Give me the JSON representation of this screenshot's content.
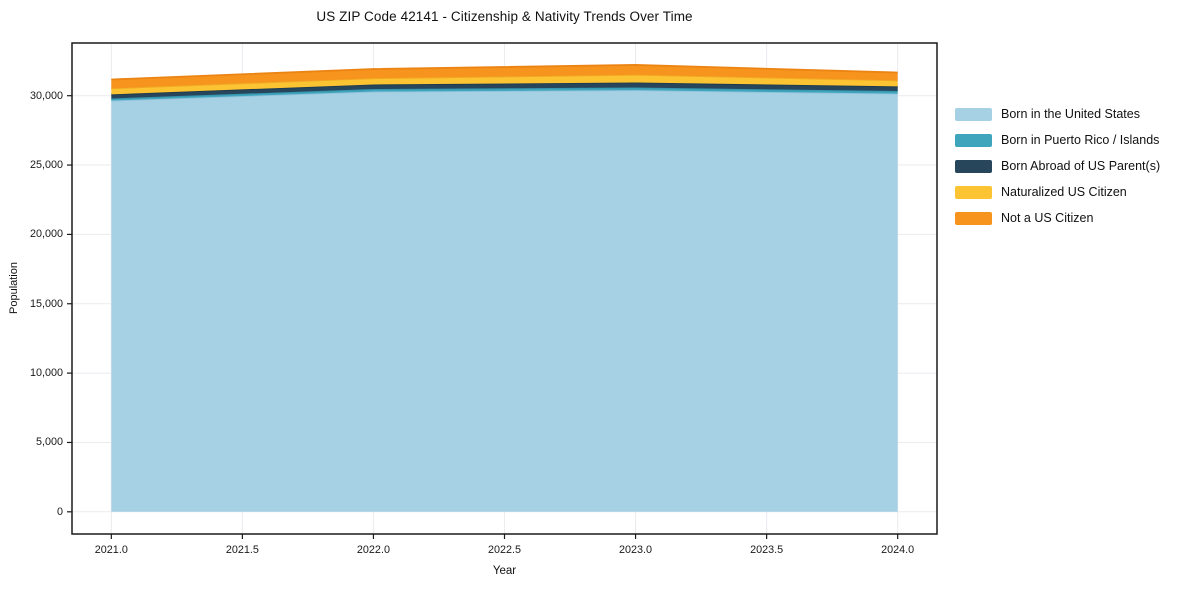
{
  "chart_data": {
    "type": "area",
    "stacked": true,
    "title": "US ZIP Code 42141 - Citizenship & Nativity Trends Over Time",
    "xlabel": "Year",
    "ylabel": "Population",
    "x": [
      2021,
      2022,
      2023,
      2024
    ],
    "series": [
      {
        "name": "Born in the United States",
        "color": "#a6d0e4",
        "edge_color": "#8fc2da",
        "values": [
          29650,
          30300,
          30400,
          30150
        ]
      },
      {
        "name": "Born in Puerto Rico / Islands",
        "color": "#3fa5bc",
        "edge_color": "#3595ac",
        "values": [
          150,
          180,
          190,
          190
        ]
      },
      {
        "name": "Born Abroad of US Parent(s)",
        "color": "#27465c",
        "edge_color": "#1f3a4d",
        "values": [
          300,
          330,
          360,
          330
        ]
      },
      {
        "name": "Naturalized US Citizen",
        "color": "#fcc433",
        "edge_color": "#f0ab25",
        "values": [
          430,
          450,
          560,
          430
        ]
      },
      {
        "name": "Not a US Citizen",
        "color": "#f7941e",
        "edge_color": "#ec8414",
        "values": [
          640,
          660,
          710,
          570
        ]
      }
    ],
    "xlim": [
      2020.85,
      2024.15
    ],
    "ylim": [
      -1600,
      33800
    ],
    "xticks": [
      2021.0,
      2021.5,
      2022.0,
      2022.5,
      2023.0,
      2023.5,
      2024.0
    ],
    "xtick_labels": [
      "2021.0",
      "2021.5",
      "2022.0",
      "2022.5",
      "2023.0",
      "2023.5",
      "2024.0"
    ],
    "yticks": [
      0,
      5000,
      10000,
      15000,
      20000,
      25000,
      30000
    ],
    "ytick_labels": [
      "0",
      "5,000",
      "10,000",
      "15,000",
      "20,000",
      "25,000",
      "30,000"
    ],
    "grid": true,
    "grid_color": "#ebebf0",
    "frame_color": "#1a1a1a",
    "legend_position": "right"
  }
}
